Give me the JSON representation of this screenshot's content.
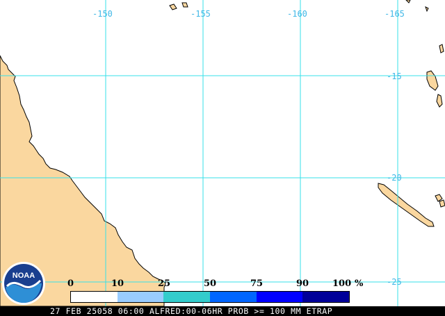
{
  "map": {
    "grid_color": "#36e0e8",
    "land_color": "#fad79f",
    "longitude_labels": [
      "-150",
      "-155",
      "-160",
      "-165"
    ],
    "latitude_labels": [
      "-15",
      "-20",
      "-25"
    ]
  },
  "legend": {
    "ticks": [
      "0",
      "10",
      "25",
      "50",
      "75",
      "90",
      "100"
    ],
    "unit": "%",
    "colors": [
      "#ffffff",
      "#99ccff",
      "#33cccc",
      "#0066ff",
      "#0000ff",
      "#000099"
    ]
  },
  "footer": {
    "text": "27 FEB 25058 06:00 ALFRED:00-06HR PROB >= 100 MM ETRAP"
  },
  "logo": {
    "label": "NOAA"
  }
}
